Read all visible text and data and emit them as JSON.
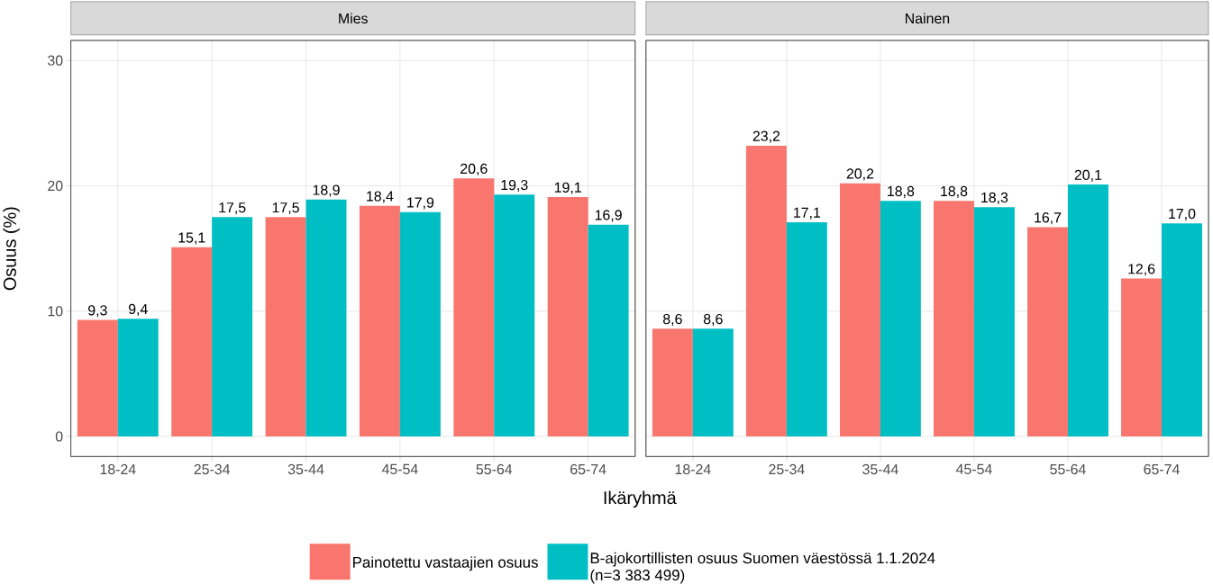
{
  "chart_data": [
    {
      "type": "bar",
      "title": "Mies",
      "xlabel": "Ikäryhmä",
      "ylabel": "Osuus (%)",
      "categories": [
        "18-24",
        "25-34",
        "35-44",
        "45-54",
        "55-64",
        "65-74"
      ],
      "series": [
        {
          "name": "Painotettu vastaajien osuus",
          "color": "#f8766d",
          "values": [
            9.3,
            15.1,
            17.5,
            18.4,
            20.6,
            19.1
          ],
          "value_labels": [
            "9,3",
            "15,1",
            "17,5",
            "18,4",
            "20,6",
            "19,1"
          ]
        },
        {
          "name": "B-ajokortillisten osuus Suomen väestössä 1.1.2024 (n=3 383 499)",
          "color": "#00bfc4",
          "values": [
            9.4,
            17.5,
            18.9,
            17.9,
            19.3,
            16.9
          ],
          "value_labels": [
            "9,4",
            "17,5",
            "18,9",
            "17,9",
            "19,3",
            "16,9"
          ]
        }
      ],
      "ylim": [
        -1.6,
        31.6
      ],
      "yticks": [
        0,
        10,
        20,
        30
      ],
      "grid": true,
      "legend": "bottom"
    },
    {
      "type": "bar",
      "title": "Nainen",
      "categories": [
        "18-24",
        "25-34",
        "35-44",
        "45-54",
        "55-64",
        "65-74"
      ],
      "series": [
        {
          "color": "#f8766d",
          "values": [
            8.6,
            23.2,
            20.2,
            18.8,
            16.7,
            12.6
          ],
          "value_labels": [
            "8,6",
            "23,2",
            "20,2",
            "18,8",
            "16,7",
            "12,6"
          ]
        },
        {
          "color": "#00bfc4",
          "values": [
            8.6,
            17.1,
            18.8,
            18.3,
            20.1,
            17.0
          ],
          "value_labels": [
            "8,6",
            "17,1",
            "18,8",
            "18,3",
            "20,1",
            "17,0"
          ]
        }
      ],
      "ylim": [
        -1.6,
        31.6
      ],
      "yticks": [
        0,
        10,
        20,
        30
      ],
      "grid": true,
      "tick_labels": "x"
    }
  ]
}
